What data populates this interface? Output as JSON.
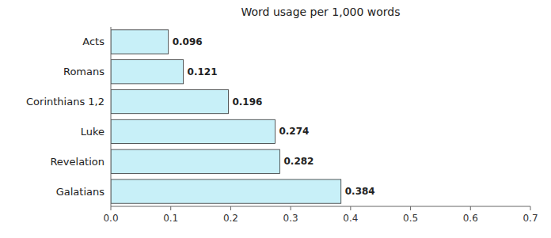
{
  "chart_data": {
    "type": "bar",
    "orientation": "horizontal",
    "title": "Word usage per 1,000 words",
    "categories": [
      "Acts",
      "Romans",
      "Corinthians 1,2",
      "Luke",
      "Revelation",
      "Galatians"
    ],
    "values": [
      0.096,
      0.121,
      0.196,
      0.274,
      0.282,
      0.384
    ],
    "color": "#c8f0f8",
    "xlim": [
      0,
      0.7
    ],
    "xticks": [
      {
        "value": 0,
        "label": "0.0"
      },
      0.1,
      0.2,
      0.3,
      0.4,
      0.5,
      0.6,
      0.7
    ],
    "data_labels": true,
    "grid": false
  }
}
